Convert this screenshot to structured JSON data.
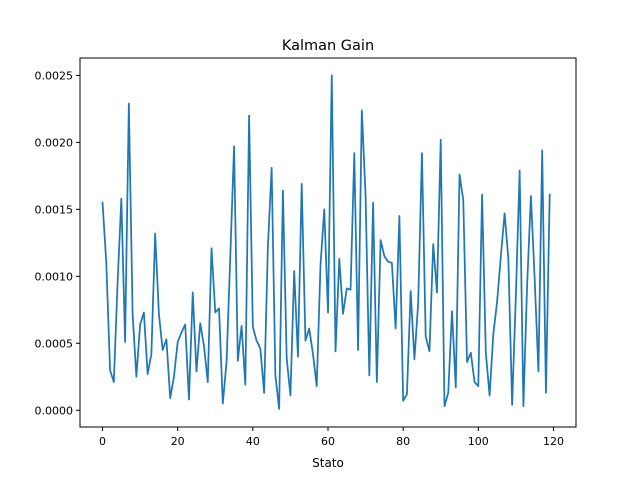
{
  "chart_data": {
    "type": "line",
    "title": "Kalman Gain",
    "xlabel": "Stato",
    "ylabel": "",
    "xlim": [
      -6,
      126
    ],
    "ylim": [
      -0.000125,
      0.00263
    ],
    "grid": false,
    "x_ticks": [
      {
        "value": 0,
        "label": "0"
      },
      {
        "value": 20,
        "label": "20"
      },
      {
        "value": 40,
        "label": "40"
      },
      {
        "value": 60,
        "label": "60"
      },
      {
        "value": 80,
        "label": "80"
      },
      {
        "value": 100,
        "label": "100"
      },
      {
        "value": 120,
        "label": "120"
      }
    ],
    "y_ticks": [
      {
        "value": 0.0,
        "label": "0.0000"
      },
      {
        "value": 0.0005,
        "label": "0.0005"
      },
      {
        "value": 0.001,
        "label": "0.0010"
      },
      {
        "value": 0.0015,
        "label": "0.0015"
      },
      {
        "value": 0.002,
        "label": "0.0020"
      },
      {
        "value": 0.0025,
        "label": "0.0025"
      }
    ],
    "series": [
      {
        "color": "#1f77b4",
        "x_start": 0,
        "x_step": 1,
        "values": [
          0.00155,
          0.0011,
          0.0003,
          0.00021,
          0.00095,
          0.00158,
          0.00051,
          0.00229,
          0.00072,
          0.00025,
          0.00064,
          0.00073,
          0.00027,
          0.00042,
          0.00132,
          0.00072,
          0.00045,
          0.00053,
          9e-05,
          0.00025,
          0.00051,
          0.00058,
          0.00064,
          8e-05,
          0.00088,
          0.00029,
          0.00065,
          0.00048,
          0.00021,
          0.00121,
          0.00073,
          0.00076,
          5e-05,
          0.00036,
          0.00115,
          0.00197,
          0.00037,
          0.00063,
          0.00019,
          0.0022,
          0.00062,
          0.00052,
          0.00046,
          0.00013,
          0.00122,
          0.00181,
          0.00026,
          1e-05,
          0.00164,
          0.00039,
          0.00011,
          0.00104,
          0.0004,
          0.00169,
          0.00052,
          0.00061,
          0.00042,
          0.00018,
          0.00108,
          0.0015,
          0.00073,
          0.0025,
          0.00044,
          0.00113,
          0.00072,
          0.00091,
          0.0009,
          0.00192,
          0.00045,
          0.00224,
          0.0016,
          0.00026,
          0.00155,
          0.00021,
          0.00127,
          0.00115,
          0.00111,
          0.0011,
          0.00061,
          0.00145,
          7e-05,
          0.00012,
          0.00089,
          0.00038,
          0.0008,
          0.00192,
          0.00055,
          0.00044,
          0.00124,
          0.00088,
          0.00202,
          3e-05,
          0.00013,
          0.00074,
          0.00017,
          0.00176,
          0.00157,
          0.00036,
          0.00043,
          0.00021,
          0.00018,
          0.00161,
          0.00043,
          0.00011,
          0.00057,
          0.00081,
          0.00115,
          0.00147,
          0.00113,
          4e-05,
          0.00086,
          0.00179,
          3e-05,
          0.00094,
          0.0016,
          0.00098,
          0.00029,
          0.00194,
          0.00013,
          0.00161
        ]
      }
    ]
  }
}
